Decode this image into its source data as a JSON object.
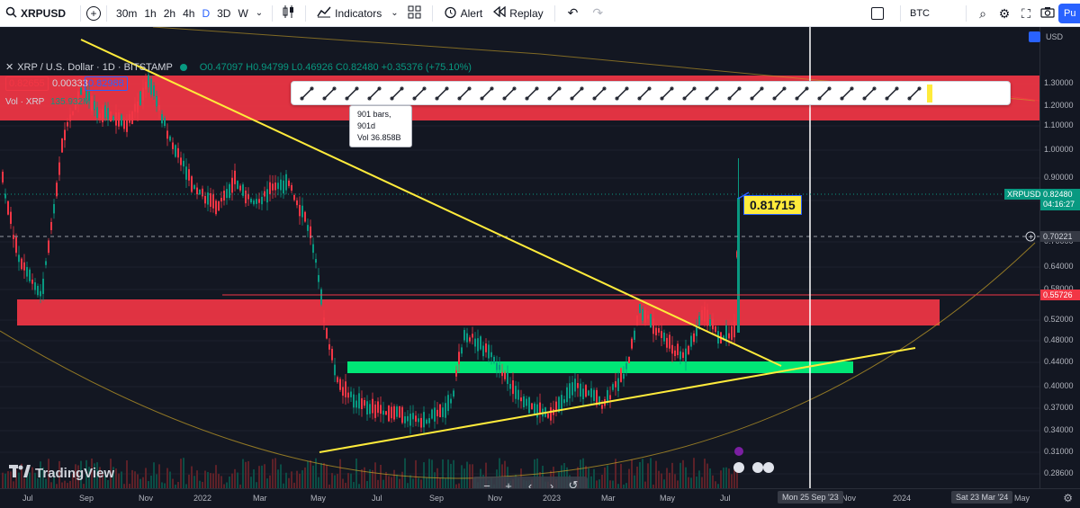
{
  "topbar": {
    "symbol": "XRPUSD",
    "timeframes": [
      "30m",
      "1h",
      "2h",
      "4h",
      "D",
      "3D",
      "W"
    ],
    "active_timeframe": "D",
    "indicators_label": "Indicators",
    "alert_label": "Alert",
    "replay_label": "Replay",
    "compare_symbol": "BTC",
    "publish_label": "Pu"
  },
  "legend": {
    "title": "XRP / U.S. Dollar · 1D · BITSTAMP",
    "ohlc": "O0.47097 H0.94799 L0.46926 C0.82480 +0.35376 (+75.10%)",
    "bid": "0.82655",
    "spread": "0.00333",
    "ask": "0.82988",
    "vol_label": "Vol · XRP",
    "vol_value": "135.932M"
  },
  "tooltip": {
    "line1": "901 bars, 901d",
    "line2": "Vol 36.858B"
  },
  "callout": "0.81715",
  "price_axis": {
    "currency": "USD",
    "ticks": [
      "1.30000",
      "1.20000",
      "1.10000",
      "1.00000",
      "0.90000",
      "0.80000",
      "0.70000",
      "0.64000",
      "0.58000",
      "0.52000",
      "0.48000",
      "0.44000",
      "0.40000",
      "0.37000",
      "0.34000",
      "0.31000",
      "0.28600"
    ],
    "symbol_tag": "XRPUSD",
    "last_price": "0.82480",
    "countdown": "04:16:27",
    "crosshair_price": "0.70221",
    "line_price": "0.55726"
  },
  "time_axis": {
    "ticks": [
      "Jul",
      "Sep",
      "Nov",
      "2022",
      "Mar",
      "May",
      "Jul",
      "Sep",
      "Nov",
      "2023",
      "Mar",
      "May",
      "Jul",
      "Nov",
      "2024",
      "May"
    ],
    "crosshair_date": "Mon 25 Sep '23",
    "range_end_date": "Sat 23 Mar '24"
  },
  "brand": "TradingView",
  "colors": {
    "background": "#131722",
    "resistance_zone": "#f23645",
    "support_zone": "#00e676",
    "trendline": "#ffeb3b",
    "up_candle": "#089981",
    "down_candle": "#f23645",
    "line_marker": "#f23645"
  }
}
